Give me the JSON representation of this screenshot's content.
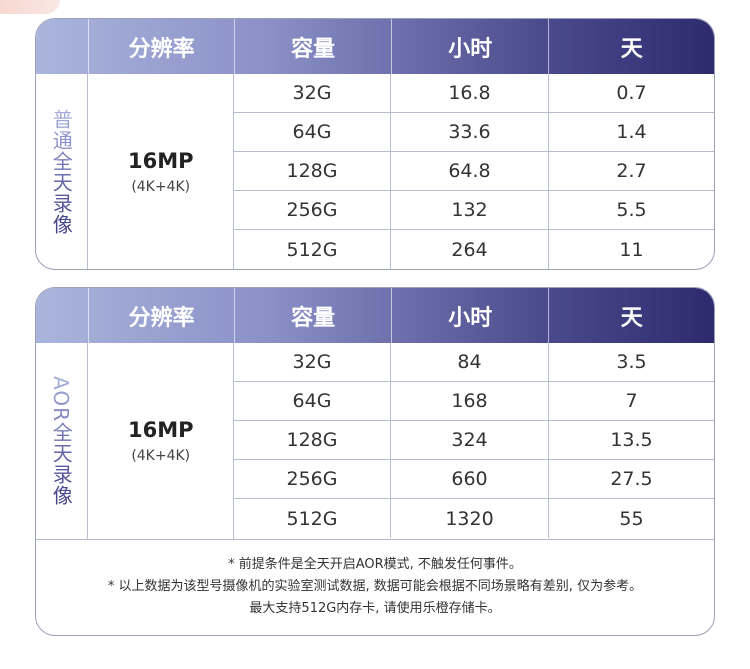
{
  "headers": [
    "",
    "分辨率",
    "容量",
    "小时",
    "天"
  ],
  "table1": {
    "label": "普通全天录像",
    "resolution": "16MP",
    "resolution_sub": "(4K+4K)",
    "rows": [
      [
        "32G",
        "16.8",
        "0.7"
      ],
      [
        "64G",
        "33.6",
        "1.4"
      ],
      [
        "128G",
        "64.8",
        "2.7"
      ],
      [
        "256G",
        "132",
        "5.5"
      ],
      [
        "512G",
        "264",
        "11"
      ]
    ]
  },
  "table2": {
    "label": "AOR全天录像",
    "resolution": "16MP",
    "resolution_sub": "(4K+4K)",
    "rows": [
      [
        "32G",
        "84",
        "3.5"
      ],
      [
        "64G",
        "168",
        "7"
      ],
      [
        "128G",
        "324",
        "13.5"
      ],
      [
        "256G",
        "660",
        "27.5"
      ],
      [
        "512G",
        "1320",
        "55"
      ]
    ]
  },
  "notes": [
    "* 前提条件是全天开启AOR模式, 不触发任何事件。",
    "* 以上数据为该型号摄像机的实验室测试数据, 数据可能会根据不同场景略有差别, 仅为参考。",
    "最大支持512G内存卡, 请使用乐橙存储卡。"
  ]
}
